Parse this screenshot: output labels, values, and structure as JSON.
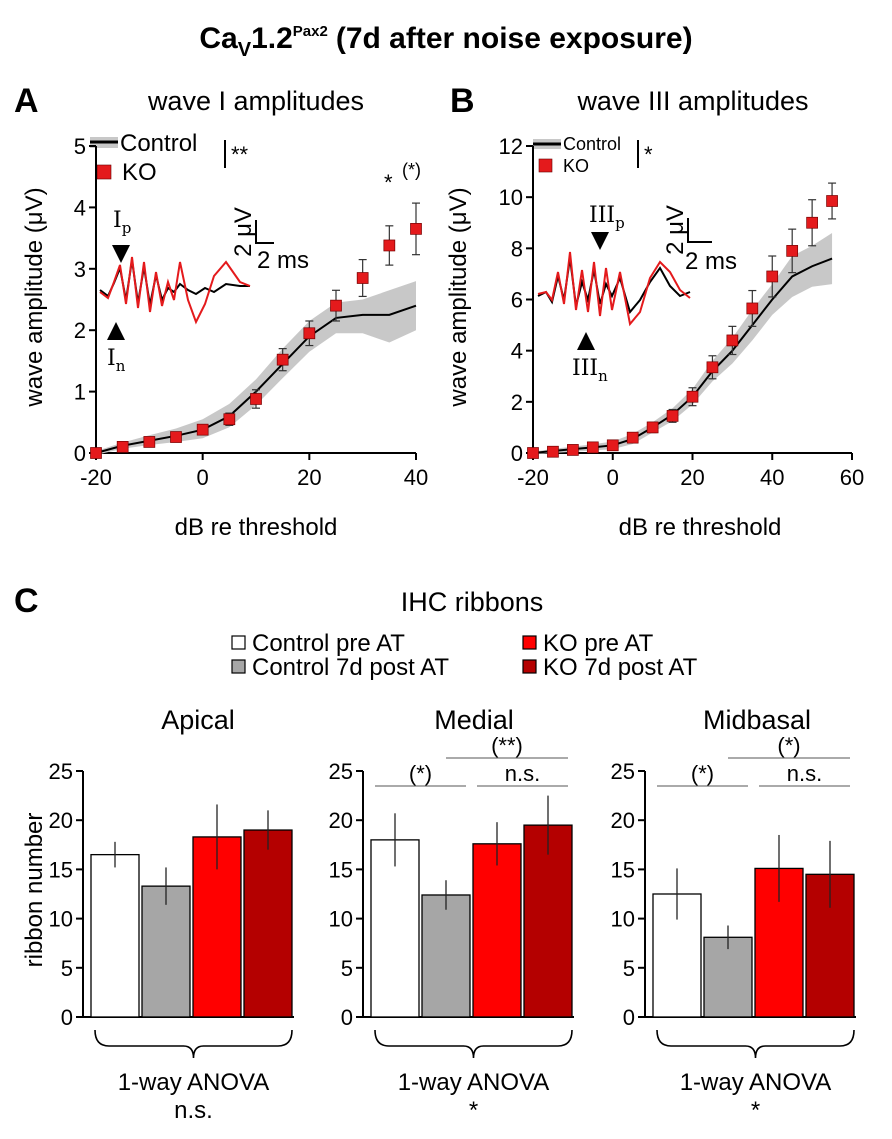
{
  "figure": {
    "title_main": "Ca",
    "title_sub": "V",
    "title_version": "1.2",
    "title_sup": "Pax2",
    "title_rest": "(7d after noise exposure)",
    "colors": {
      "control_line": "#000000",
      "control_band": "#c8c8c8",
      "ko": "#e41a1c",
      "ko_dark": "#b40000",
      "grey_bar": "#a6a6a6"
    }
  },
  "panel_a": {
    "letter": "A",
    "legend_control": "Control",
    "legend_ko": "KO",
    "legend_sig": "**",
    "scale_voltage": "2 μV",
    "scale_time": "2 ms",
    "peak_top_label": "I",
    "peak_top_sub": "p",
    "peak_bottom_label": "I",
    "peak_bottom_sub": "n",
    "point_annotation_1": "*",
    "point_annotation_2": "(*)"
  },
  "panel_b": {
    "letter": "B",
    "legend_control": "Control",
    "legend_ko": "KO",
    "legend_sig": "*",
    "scale_voltage": "2 μV",
    "scale_time": "2 ms",
    "peak_top_label": "III",
    "peak_top_sub": "p",
    "peak_bottom_label": "III",
    "peak_bottom_sub": "n"
  },
  "panel_c": {
    "letter": "C",
    "title": "IHC ribbons",
    "legend": [
      "Control pre AT",
      "Control 7d post AT",
      "KO pre AT",
      "KO 7d post AT"
    ],
    "ylabel": "ribbon number"
  },
  "chart_data": [
    {
      "type": "line",
      "title": "wave I amplitudes",
      "xlabel": "dB re threshold",
      "ylabel": "wave amplitude (μV)",
      "xlim": [
        -20,
        40
      ],
      "ylim": [
        0,
        5
      ],
      "xticks": [
        -20,
        0,
        20,
        40
      ],
      "yticks": [
        0,
        1,
        2,
        3,
        4,
        5
      ],
      "series": [
        {
          "name": "Control",
          "style": "line_with_sd_band",
          "x": [
            -20,
            -15,
            -10,
            -5,
            0,
            5,
            10,
            15,
            20,
            25,
            30,
            35,
            40
          ],
          "values": [
            0.0,
            0.12,
            0.2,
            0.28,
            0.38,
            0.6,
            1.0,
            1.45,
            1.9,
            2.2,
            2.25,
            2.25,
            2.4
          ],
          "band_low": [
            -0.03,
            0.07,
            0.13,
            0.18,
            0.24,
            0.42,
            0.78,
            1.22,
            1.65,
            1.95,
            1.95,
            1.8,
            2.0
          ],
          "band_high": [
            0.03,
            0.17,
            0.29,
            0.4,
            0.55,
            0.8,
            1.2,
            1.7,
            2.15,
            2.45,
            2.5,
            2.65,
            2.8
          ]
        },
        {
          "name": "KO",
          "style": "squares_with_error",
          "x": [
            -20,
            -15,
            -10,
            -5,
            0,
            5,
            10,
            15,
            20,
            25,
            30,
            35,
            40
          ],
          "values": [
            0.0,
            0.1,
            0.18,
            0.26,
            0.38,
            0.55,
            0.88,
            1.52,
            1.95,
            2.4,
            2.85,
            3.38,
            3.65
          ],
          "error": [
            0.03,
            0.04,
            0.05,
            0.06,
            0.07,
            0.1,
            0.15,
            0.18,
            0.2,
            0.25,
            0.3,
            0.32,
            0.42
          ]
        }
      ]
    },
    {
      "type": "line",
      "title": "wave III amplitudes",
      "xlabel": "dB re threshold",
      "ylabel": "wave amplitude (μV)",
      "xlim": [
        -20,
        60
      ],
      "ylim": [
        0,
        12
      ],
      "xticks": [
        -20,
        0,
        20,
        40,
        60
      ],
      "yticks": [
        0,
        2,
        4,
        6,
        8,
        10,
        12
      ],
      "series": [
        {
          "name": "Control",
          "style": "line_with_sd_band",
          "x": [
            -20,
            -15,
            -10,
            -5,
            0,
            5,
            10,
            15,
            20,
            25,
            30,
            35,
            40,
            45,
            50,
            55
          ],
          "values": [
            0.0,
            0.08,
            0.15,
            0.22,
            0.3,
            0.55,
            1.0,
            1.5,
            2.2,
            3.2,
            4.0,
            5.0,
            6.0,
            6.9,
            7.3,
            7.6
          ],
          "band_low": [
            -0.05,
            0.0,
            0.05,
            0.1,
            0.15,
            0.35,
            0.8,
            1.25,
            1.9,
            2.8,
            3.5,
            4.4,
            5.4,
            6.1,
            6.5,
            6.6
          ],
          "band_high": [
            0.05,
            0.16,
            0.25,
            0.34,
            0.45,
            0.75,
            1.2,
            1.75,
            2.5,
            3.6,
            4.5,
            5.6,
            6.6,
            7.7,
            8.1,
            8.6
          ]
        },
        {
          "name": "KO",
          "style": "squares_with_error",
          "x": [
            -20,
            -15,
            -10,
            -5,
            0,
            5,
            10,
            15,
            20,
            25,
            30,
            35,
            40,
            45,
            50,
            55
          ],
          "values": [
            0.0,
            0.05,
            0.12,
            0.22,
            0.3,
            0.6,
            1.0,
            1.45,
            2.2,
            3.35,
            4.4,
            5.65,
            6.9,
            7.9,
            9.0,
            9.85
          ],
          "error": [
            0.05,
            0.06,
            0.08,
            0.1,
            0.12,
            0.15,
            0.2,
            0.25,
            0.35,
            0.45,
            0.55,
            0.7,
            0.8,
            0.85,
            0.9,
            0.7
          ]
        }
      ]
    },
    {
      "type": "bar",
      "title": "Apical",
      "ylabel": "ribbon number",
      "ylim": [
        0,
        25
      ],
      "yticks": [
        0,
        5,
        10,
        15,
        20,
        25
      ],
      "categories": [
        "Control pre AT",
        "Control 7d post AT",
        "KO pre AT",
        "KO 7d post AT"
      ],
      "values": [
        16.5,
        13.3,
        18.3,
        19.0
      ],
      "error": [
        1.3,
        1.9,
        3.3,
        2.0
      ],
      "anova_label": "1-way ANOVA",
      "anova_result": "n.s.",
      "comparisons": []
    },
    {
      "type": "bar",
      "title": "Medial",
      "ylabel": "ribbon number",
      "ylim": [
        0,
        25
      ],
      "yticks": [
        0,
        5,
        10,
        15,
        20,
        25
      ],
      "categories": [
        "Control pre AT",
        "Control 7d post AT",
        "KO pre AT",
        "KO 7d post AT"
      ],
      "values": [
        18.0,
        12.4,
        17.6,
        19.5
      ],
      "error": [
        2.7,
        1.5,
        2.2,
        3.0
      ],
      "anova_label": "1-way ANOVA",
      "anova_result": "*",
      "comparisons": [
        {
          "pair": [
            0,
            1
          ],
          "label": "(*)"
        },
        {
          "pair": [
            1,
            3
          ],
          "label": "(**)"
        },
        {
          "pair": [
            2,
            3
          ],
          "label": "n.s."
        }
      ]
    },
    {
      "type": "bar",
      "title": "Midbasal",
      "ylabel": "ribbon number",
      "ylim": [
        0,
        25
      ],
      "yticks": [
        0,
        5,
        10,
        15,
        20,
        25
      ],
      "categories": [
        "Control pre AT",
        "Control 7d post AT",
        "KO pre AT",
        "KO 7d post AT"
      ],
      "values": [
        12.5,
        8.1,
        15.1,
        14.5
      ],
      "error": [
        2.6,
        1.2,
        3.4,
        3.4
      ],
      "anova_label": "1-way ANOVA",
      "anova_result": "*",
      "comparisons": [
        {
          "pair": [
            0,
            1
          ],
          "label": "(*)"
        },
        {
          "pair": [
            1,
            3
          ],
          "label": "(*)"
        },
        {
          "pair": [
            2,
            3
          ],
          "label": "n.s."
        }
      ]
    }
  ]
}
